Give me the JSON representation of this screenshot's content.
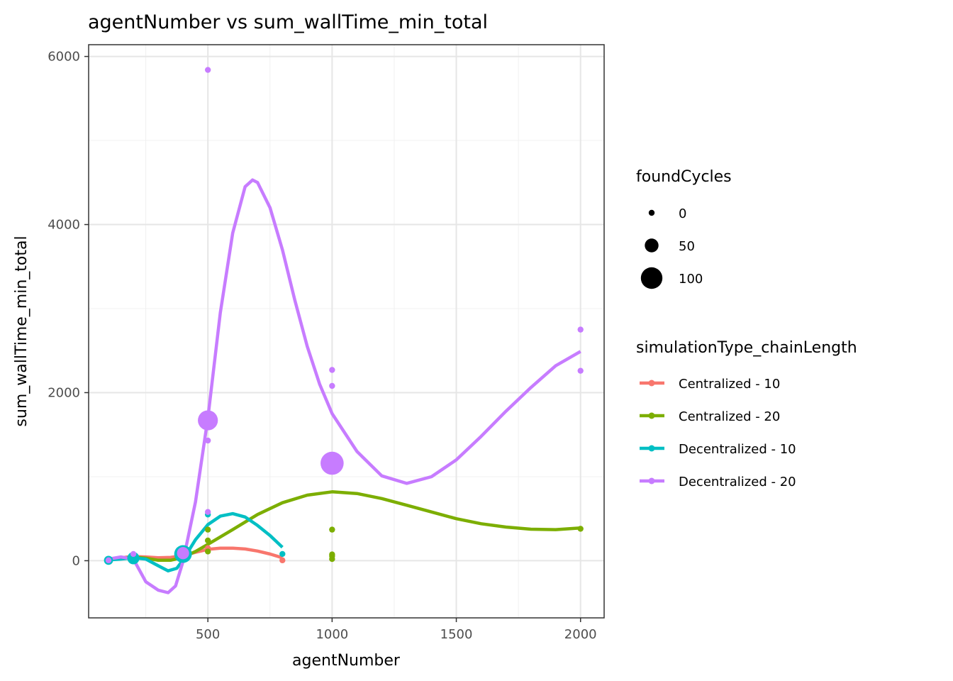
{
  "chart_data": {
    "type": "scatter",
    "title": "agentNumber  vs  sum_wallTime_min_total",
    "xlabel": "agentNumber",
    "ylabel": "sum_wallTime_min_total",
    "xlim": [
      20,
      2095
    ],
    "ylim": [
      -680,
      6140
    ],
    "x_ticks": [
      500,
      1000,
      1500,
      2000
    ],
    "x_minor_ticks": [
      250,
      750,
      1250,
      1750
    ],
    "y_ticks": [
      0,
      2000,
      4000,
      6000
    ],
    "y_minor_ticks": [
      1000,
      3000,
      5000
    ],
    "grid": true,
    "legend_position": "right",
    "size_legend": {
      "title": "foundCycles",
      "entries": [
        {
          "label": "0",
          "value": 0
        },
        {
          "label": "50",
          "value": 50
        },
        {
          "label": "100",
          "value": 100
        }
      ]
    },
    "color_legend": {
      "title": "simulationType_chainLength"
    },
    "series": [
      {
        "name": "Centralized - 10",
        "color": "#F8766D",
        "points": [
          {
            "x": 100,
            "y": 5,
            "size": 0
          },
          {
            "x": 200,
            "y": 45,
            "size": 0
          },
          {
            "x": 400,
            "y": 60,
            "size": 0
          },
          {
            "x": 500,
            "y": 150,
            "size": 0
          },
          {
            "x": 800,
            "y": 5,
            "size": 0
          }
        ],
        "smooth": [
          [
            100,
            15
          ],
          [
            150,
            35
          ],
          [
            200,
            50
          ],
          [
            250,
            45
          ],
          [
            300,
            35
          ],
          [
            350,
            40
          ],
          [
            400,
            60
          ],
          [
            450,
            100
          ],
          [
            500,
            135
          ],
          [
            550,
            150
          ],
          [
            600,
            150
          ],
          [
            650,
            140
          ],
          [
            700,
            115
          ],
          [
            750,
            80
          ],
          [
            800,
            35
          ]
        ]
      },
      {
        "name": "Centralized - 20",
        "color": "#7CAE00",
        "points": [
          {
            "x": 100,
            "y": 5,
            "size": 0
          },
          {
            "x": 200,
            "y": 60,
            "size": 0
          },
          {
            "x": 400,
            "y": 90,
            "size": 0
          },
          {
            "x": 500,
            "y": 110,
            "size": 0
          },
          {
            "x": 500,
            "y": 240,
            "size": 0
          },
          {
            "x": 500,
            "y": 370,
            "size": 0
          },
          {
            "x": 1000,
            "y": 20,
            "size": 0
          },
          {
            "x": 1000,
            "y": 55,
            "size": 0
          },
          {
            "x": 1000,
            "y": 75,
            "size": 0
          },
          {
            "x": 1000,
            "y": 370,
            "size": 0
          },
          {
            "x": 2000,
            "y": 380,
            "size": 0
          }
        ],
        "smooth": [
          [
            100,
            10
          ],
          [
            150,
            30
          ],
          [
            200,
            45
          ],
          [
            250,
            30
          ],
          [
            300,
            5
          ],
          [
            350,
            5
          ],
          [
            400,
            40
          ],
          [
            450,
            110
          ],
          [
            500,
            195
          ],
          [
            600,
            370
          ],
          [
            700,
            550
          ],
          [
            800,
            690
          ],
          [
            900,
            780
          ],
          [
            1000,
            820
          ],
          [
            1100,
            800
          ],
          [
            1200,
            740
          ],
          [
            1300,
            660
          ],
          [
            1400,
            580
          ],
          [
            1500,
            500
          ],
          [
            1600,
            440
          ],
          [
            1700,
            400
          ],
          [
            1800,
            375
          ],
          [
            1900,
            370
          ],
          [
            2000,
            390
          ]
        ]
      },
      {
        "name": "Decentralized - 10",
        "color": "#00BFC4",
        "points": [
          {
            "x": 100,
            "y": 5,
            "size": 20
          },
          {
            "x": 200,
            "y": 30,
            "size": 40
          },
          {
            "x": 400,
            "y": 80,
            "size": 75
          },
          {
            "x": 500,
            "y": 550,
            "size": 0
          },
          {
            "x": 500,
            "y": 1610,
            "size": 15
          },
          {
            "x": 800,
            "y": 80,
            "size": 0
          }
        ],
        "smooth": [
          [
            100,
            10
          ],
          [
            150,
            20
          ],
          [
            200,
            35
          ],
          [
            250,
            20
          ],
          [
            300,
            -60
          ],
          [
            340,
            -120
          ],
          [
            375,
            -90
          ],
          [
            400,
            10
          ],
          [
            450,
            250
          ],
          [
            500,
            430
          ],
          [
            550,
            530
          ],
          [
            600,
            560
          ],
          [
            650,
            520
          ],
          [
            700,
            420
          ],
          [
            750,
            300
          ],
          [
            800,
            160
          ]
        ]
      },
      {
        "name": "Decentralized - 20",
        "color": "#C77CFF",
        "points": [
          {
            "x": 100,
            "y": 5,
            "size": 0
          },
          {
            "x": 200,
            "y": 80,
            "size": 0
          },
          {
            "x": 400,
            "y": 90,
            "size": 40
          },
          {
            "x": 500,
            "y": 1670,
            "size": 90
          },
          {
            "x": 500,
            "y": 1430,
            "size": 0
          },
          {
            "x": 500,
            "y": 580,
            "size": 0
          },
          {
            "x": 500,
            "y": 5840,
            "size": 0
          },
          {
            "x": 1000,
            "y": 1160,
            "size": 110
          },
          {
            "x": 1000,
            "y": 2080,
            "size": 0
          },
          {
            "x": 1000,
            "y": 2270,
            "size": 0
          },
          {
            "x": 2000,
            "y": 2260,
            "size": 0
          },
          {
            "x": 2000,
            "y": 2750,
            "size": 0
          }
        ],
        "smooth": [
          [
            100,
            20
          ],
          [
            150,
            45
          ],
          [
            200,
            20
          ],
          [
            250,
            -250
          ],
          [
            300,
            -350
          ],
          [
            340,
            -380
          ],
          [
            370,
            -300
          ],
          [
            400,
            -10
          ],
          [
            450,
            700
          ],
          [
            500,
            1700
          ],
          [
            550,
            2950
          ],
          [
            600,
            3900
          ],
          [
            650,
            4450
          ],
          [
            680,
            4530
          ],
          [
            700,
            4500
          ],
          [
            750,
            4200
          ],
          [
            800,
            3700
          ],
          [
            850,
            3100
          ],
          [
            900,
            2550
          ],
          [
            950,
            2100
          ],
          [
            1000,
            1750
          ],
          [
            1100,
            1300
          ],
          [
            1200,
            1010
          ],
          [
            1300,
            920
          ],
          [
            1400,
            1000
          ],
          [
            1500,
            1200
          ],
          [
            1600,
            1480
          ],
          [
            1700,
            1780
          ],
          [
            1800,
            2060
          ],
          [
            1900,
            2320
          ],
          [
            2000,
            2490
          ]
        ]
      }
    ]
  }
}
